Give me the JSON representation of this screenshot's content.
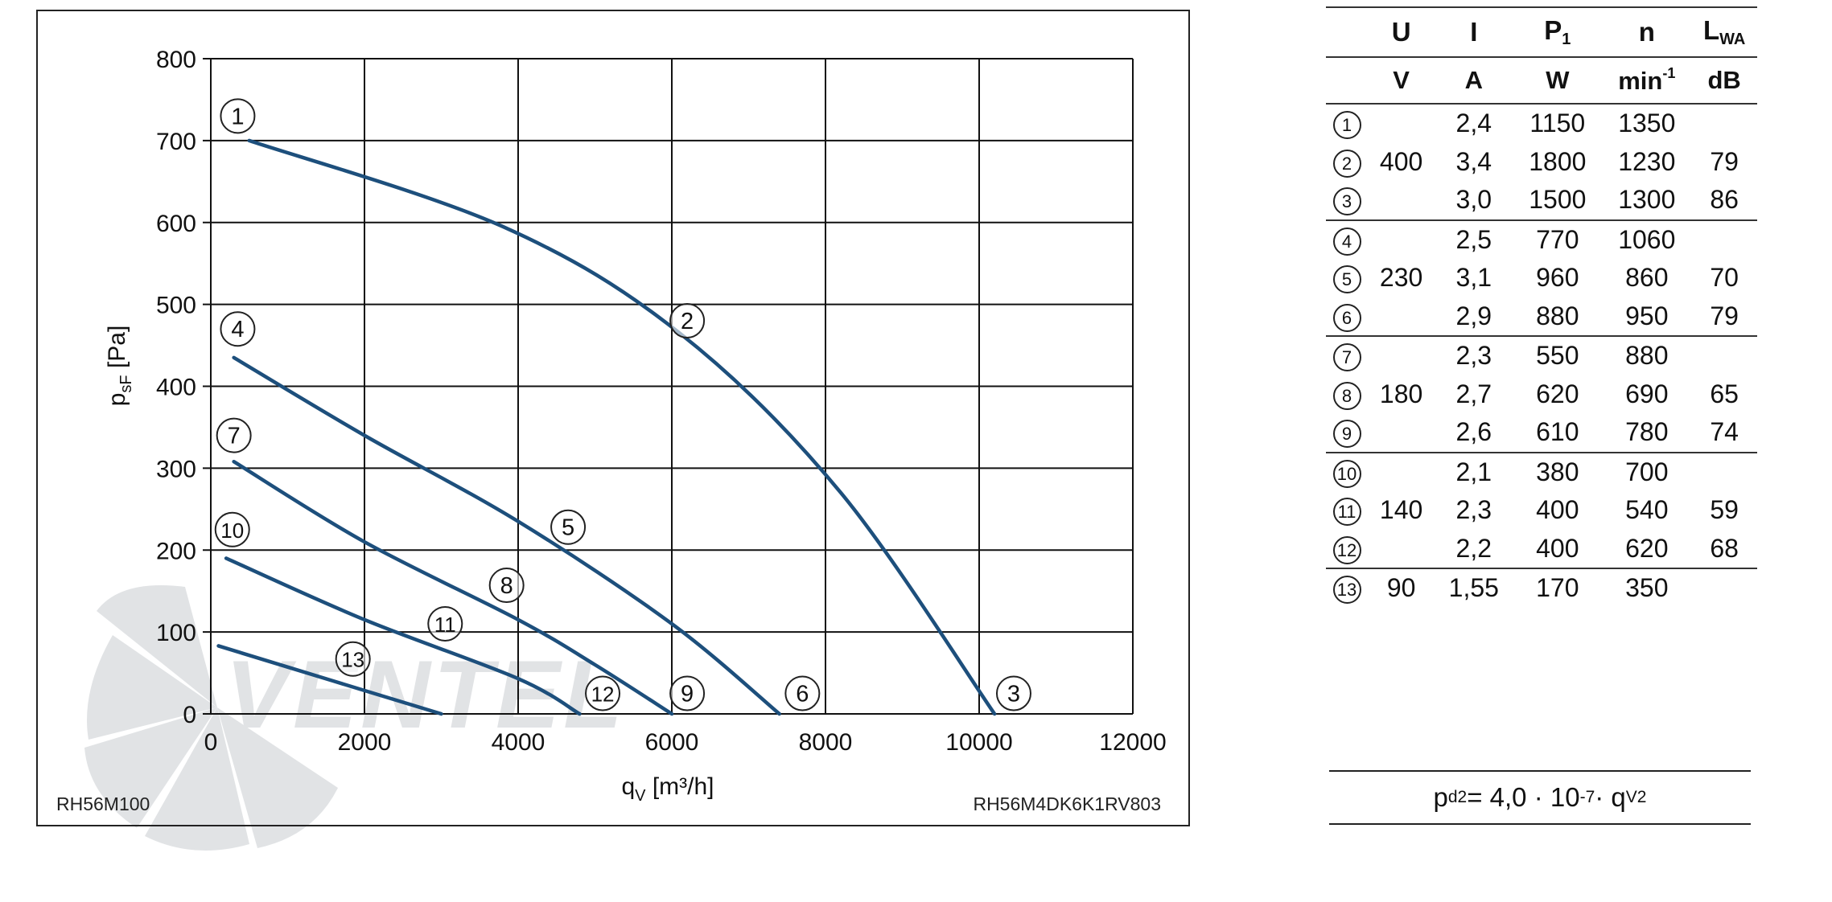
{
  "chart_data": {
    "type": "line",
    "xlabel_main": "q",
    "xlabel_sub": "V",
    "xlabel_unit": " [m³/h]",
    "ylabel_main": "p",
    "ylabel_sub": "sF",
    "ylabel_unit": " [Pa]",
    "xlim": [
      0,
      12000
    ],
    "ylim": [
      0,
      800
    ],
    "xticks": [
      "0",
      "2000",
      "4000",
      "6000",
      "8000",
      "10000",
      "12000"
    ],
    "yticks": [
      "0",
      "100",
      "200",
      "300",
      "400",
      "500",
      "600",
      "700",
      "800"
    ],
    "grid": true,
    "line_color": "#1d4f7c",
    "footer_left": "RH56M100",
    "footer_right": "RH56M4DK6K1RV803",
    "series": [
      {
        "points": [
          [
            500,
            700
          ],
          [
            3800,
            595
          ],
          [
            6100,
            465
          ],
          [
            8200,
            270
          ],
          [
            10200,
            0
          ]
        ]
      },
      {
        "points": [
          [
            300,
            435
          ],
          [
            2000,
            340
          ],
          [
            4000,
            235
          ],
          [
            6000,
            110
          ],
          [
            7400,
            0
          ]
        ]
      },
      {
        "points": [
          [
            300,
            308
          ],
          [
            2000,
            210
          ],
          [
            4000,
            115
          ],
          [
            5000,
            60
          ],
          [
            6000,
            0
          ]
        ]
      },
      {
        "points": [
          [
            200,
            190
          ],
          [
            2000,
            115
          ],
          [
            4000,
            43
          ],
          [
            4800,
            0
          ]
        ]
      },
      {
        "points": [
          [
            100,
            83
          ],
          [
            1600,
            40
          ],
          [
            3000,
            0
          ]
        ]
      }
    ],
    "labels": [
      {
        "text": "1",
        "x": 350,
        "y": 730
      },
      {
        "text": "2",
        "x": 6200,
        "y": 480
      },
      {
        "text": "3",
        "x": 10450,
        "y": 25
      },
      {
        "text": "4",
        "x": 350,
        "y": 470
      },
      {
        "text": "5",
        "x": 4650,
        "y": 228
      },
      {
        "text": "6",
        "x": 7700,
        "y": 25
      },
      {
        "text": "7",
        "x": 300,
        "y": 340
      },
      {
        "text": "8",
        "x": 3850,
        "y": 157
      },
      {
        "text": "9",
        "x": 6200,
        "y": 25
      },
      {
        "text": "10",
        "x": 280,
        "y": 225
      },
      {
        "text": "11",
        "x": 3050,
        "y": 110
      },
      {
        "text": "12",
        "x": 5100,
        "y": 25
      },
      {
        "text": "13",
        "x": 1850,
        "y": 67
      }
    ]
  },
  "table": {
    "header_row1": {
      "U": "U",
      "I": "I",
      "P_main": "P",
      "P_sub": "1",
      "n": "n",
      "L_main": "L",
      "L_sub": "WA"
    },
    "header_row2": {
      "U": "V",
      "I": "A",
      "P": "W",
      "n_main": "min",
      "n_sup": "-1",
      "L": "dB"
    },
    "rows": [
      {
        "num": "1",
        "U": "",
        "I": "2,4",
        "P": "1150",
        "n": "1350",
        "L": ""
      },
      {
        "num": "2",
        "U": "400",
        "I": "3,4",
        "P": "1800",
        "n": "1230",
        "L": "79"
      },
      {
        "num": "3",
        "U": "",
        "I": "3,0",
        "P": "1500",
        "n": "1300",
        "L": "86"
      },
      {
        "num": "4",
        "U": "",
        "I": "2,5",
        "P": "770",
        "n": "1060",
        "L": ""
      },
      {
        "num": "5",
        "U": "230",
        "I": "3,1",
        "P": "960",
        "n": "860",
        "L": "70"
      },
      {
        "num": "6",
        "U": "",
        "I": "2,9",
        "P": "880",
        "n": "950",
        "L": "79"
      },
      {
        "num": "7",
        "U": "",
        "I": "2,3",
        "P": "550",
        "n": "880",
        "L": ""
      },
      {
        "num": "8",
        "U": "180",
        "I": "2,7",
        "P": "620",
        "n": "690",
        "L": "65"
      },
      {
        "num": "9",
        "U": "",
        "I": "2,6",
        "P": "610",
        "n": "780",
        "L": "74"
      },
      {
        "num": "10",
        "U": "",
        "I": "2,1",
        "P": "380",
        "n": "700",
        "L": ""
      },
      {
        "num": "11",
        "U": "140",
        "I": "2,3",
        "P": "400",
        "n": "540",
        "L": "59"
      },
      {
        "num": "12",
        "U": "",
        "I": "2,2",
        "P": "400",
        "n": "620",
        "L": "68"
      },
      {
        "num": "13",
        "U": "90",
        "I": "1,55",
        "P": "170",
        "n": "350",
        "L": ""
      }
    ]
  },
  "formula": {
    "p": "p",
    "p_sub": "d2",
    "middle": " = 4,0 · 10",
    "exp": "-7",
    "dot": " · q",
    "q_sub": "V",
    "q_sup": "2"
  },
  "watermark": {
    "text": "VENTEL",
    "color": "#c9ccd0",
    "accent_color": "#a9cde8"
  }
}
